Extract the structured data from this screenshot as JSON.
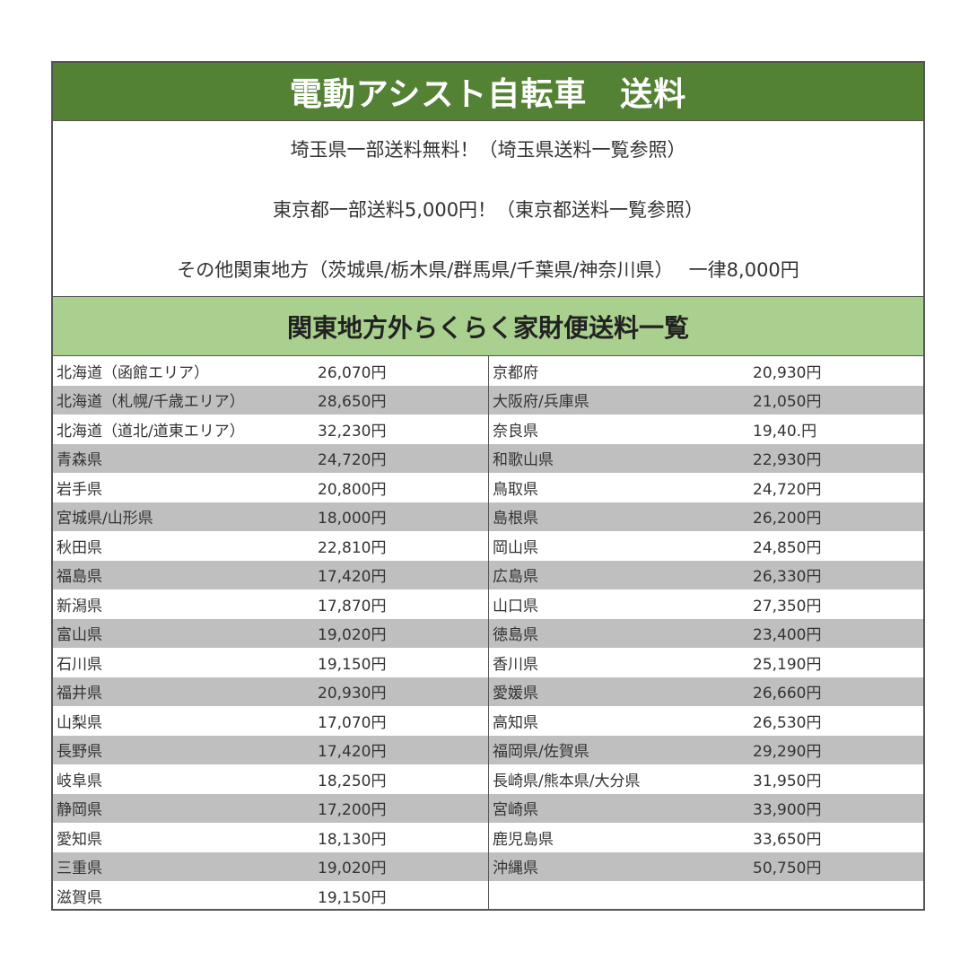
{
  "title": "電動アシスト自転車　送料",
  "info": [
    "埼玉県一部送料無料！（埼玉県送料一覧参照）",
    "東京都一部送料5,000円！（東京都送料一覧参照）",
    "その他関東地方（茨城県/栃木県/群馬県/千葉県/神奈川県）　 一律8,000円"
  ],
  "subtitle": "関東地方外らくらく家財便送料一覧",
  "colors": {
    "title_bg": "#548235",
    "subtitle_bg": "#a9d08e",
    "stripe": "#bfbfbf"
  },
  "left": [
    {
      "name": "北海道（函館エリア）",
      "price": "26,070円"
    },
    {
      "name": "北海道（札幌/千歳エリア）",
      "price": "28,650円"
    },
    {
      "name": "北海道（道北/道東エリア）",
      "price": "32,230円"
    },
    {
      "name": "青森県",
      "price": "24,720円"
    },
    {
      "name": "岩手県",
      "price": "20,800円"
    },
    {
      "name": "宮城県/山形県",
      "price": "18,000円"
    },
    {
      "name": "秋田県",
      "price": "22,810円"
    },
    {
      "name": "福島県",
      "price": "17,420円"
    },
    {
      "name": "新潟県",
      "price": "17,870円"
    },
    {
      "name": "富山県",
      "price": "19,020円"
    },
    {
      "name": "石川県",
      "price": "19,150円"
    },
    {
      "name": "福井県",
      "price": "20,930円"
    },
    {
      "name": "山梨県",
      "price": "17,070円"
    },
    {
      "name": "長野県",
      "price": "17,420円"
    },
    {
      "name": "岐阜県",
      "price": "18,250円"
    },
    {
      "name": "静岡県",
      "price": "17,200円"
    },
    {
      "name": "愛知県",
      "price": "18,130円"
    },
    {
      "name": "三重県",
      "price": "19,020円"
    },
    {
      "name": "滋賀県",
      "price": "19,150円"
    }
  ],
  "right": [
    {
      "name": "京都府",
      "price": "20,930円"
    },
    {
      "name": "大阪府/兵庫県",
      "price": "21,050円"
    },
    {
      "name": "奈良県",
      "price": "19,40.円"
    },
    {
      "name": "和歌山県",
      "price": "22,930円"
    },
    {
      "name": "鳥取県",
      "price": "24,720円"
    },
    {
      "name": "島根県",
      "price": "26,200円"
    },
    {
      "name": "岡山県",
      "price": "24,850円"
    },
    {
      "name": "広島県",
      "price": "26,330円"
    },
    {
      "name": "山口県",
      "price": "27,350円"
    },
    {
      "name": "徳島県",
      "price": "23,400円"
    },
    {
      "name": "香川県",
      "price": "25,190円"
    },
    {
      "name": "愛媛県",
      "price": "26,660円"
    },
    {
      "name": "高知県",
      "price": "26,530円"
    },
    {
      "name": "福岡県/佐賀県",
      "price": "29,290円"
    },
    {
      "name": "長崎県/熊本県/大分県",
      "price": "31,950円"
    },
    {
      "name": "宮崎県",
      "price": "33,900円"
    },
    {
      "name": "鹿児島県",
      "price": "33,650円"
    },
    {
      "name": "沖縄県",
      "price": "50,750円"
    }
  ]
}
